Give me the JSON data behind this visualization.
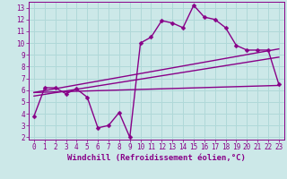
{
  "xlabel": "Windchill (Refroidissement éolien,°C)",
  "background_color": "#cce8e8",
  "grid_color": "#b0d8d8",
  "line_color": "#880088",
  "xlim": [
    -0.5,
    23.5
  ],
  "ylim": [
    1.8,
    13.5
  ],
  "xticks": [
    0,
    1,
    2,
    3,
    4,
    5,
    6,
    7,
    8,
    9,
    10,
    11,
    12,
    13,
    14,
    15,
    16,
    17,
    18,
    19,
    20,
    21,
    22,
    23
  ],
  "yticks": [
    2,
    3,
    4,
    5,
    6,
    7,
    8,
    9,
    10,
    11,
    12,
    13
  ],
  "line1_x": [
    0,
    1,
    2,
    3,
    4,
    5,
    6,
    7,
    8,
    9,
    10,
    11,
    12,
    13,
    14,
    15,
    16,
    17,
    18,
    19,
    20,
    21,
    22,
    23
  ],
  "line1_y": [
    3.8,
    6.2,
    6.2,
    5.7,
    6.1,
    5.4,
    2.8,
    3.0,
    4.1,
    2.0,
    10.0,
    10.5,
    11.9,
    11.7,
    11.3,
    13.2,
    12.2,
    12.0,
    11.3,
    9.8,
    9.4,
    9.4,
    9.4,
    6.5
  ],
  "line2_x": [
    0,
    23
  ],
  "line2_y": [
    5.8,
    9.5
  ],
  "line3_x": [
    0,
    23
  ],
  "line3_y": [
    5.5,
    8.8
  ],
  "line4_x": [
    0,
    23
  ],
  "line4_y": [
    5.8,
    6.4
  ],
  "markersize": 2.5,
  "linewidth": 1.0,
  "fontsize_axis": 6.5,
  "fontsize_tick": 5.5
}
